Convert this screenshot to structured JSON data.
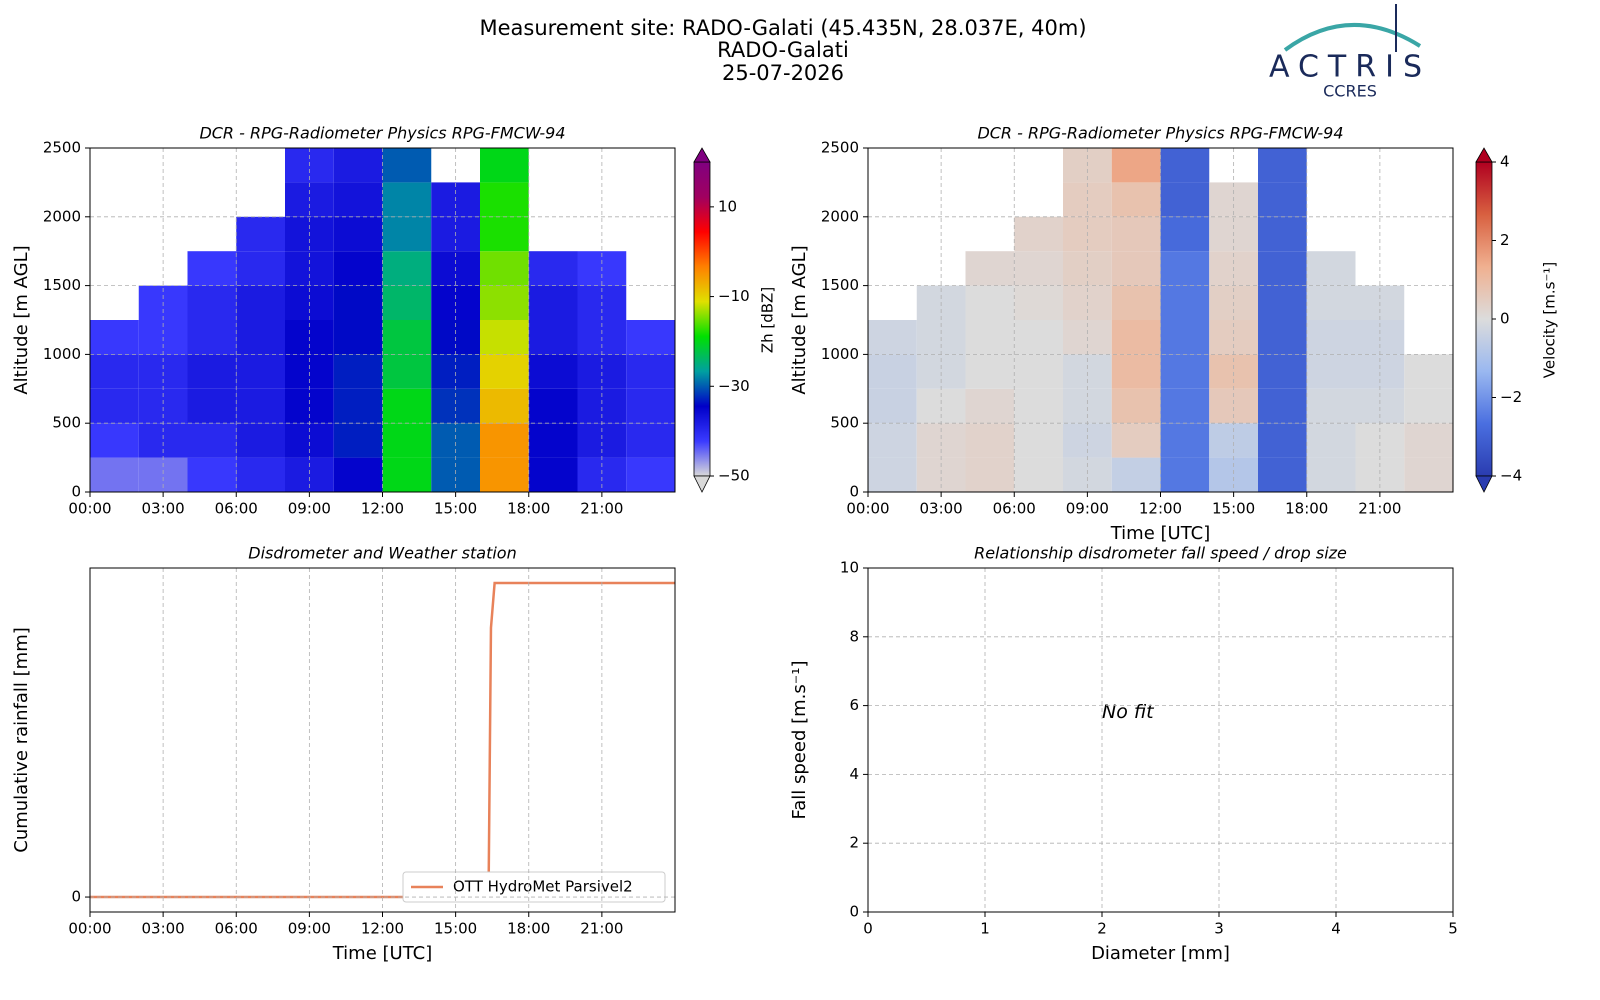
{
  "header": {
    "title_lines": [
      "Measurement site: RADO-Galati (45.435N, 28.037E, 40m)",
      "RADO-Galati",
      "25-07-2026"
    ],
    "logo_text": "ACTRIS",
    "logo_subtext": "CCRES"
  },
  "chart_data": [
    {
      "type": "heatmap",
      "title": "DCR - RPG-Radiometer Physics RPG-FMCW-94",
      "ylabel": "Altitude [m AGL]",
      "xbins": [
        0,
        2,
        4,
        6,
        8,
        10,
        12,
        14,
        16,
        18,
        20,
        22,
        24
      ],
      "ybins": [
        0,
        250,
        500,
        750,
        1000,
        1250,
        1500,
        1750,
        2000,
        2250,
        2500
      ],
      "z": [
        [
          -45,
          -45,
          -42,
          -40,
          -38,
          -35,
          -20,
          -30,
          -5,
          -35,
          -40,
          -42
        ],
        [
          -42,
          -40,
          -40,
          -38,
          -36,
          -33,
          -20,
          -30,
          -5,
          -35,
          -38,
          -40
        ],
        [
          -40,
          -40,
          -38,
          -38,
          -35,
          -33,
          -20,
          -32,
          -8,
          -35,
          -38,
          -40
        ],
        [
          -40,
          -40,
          -38,
          -38,
          -35,
          -33,
          -22,
          -33,
          -10,
          -36,
          -38,
          -40
        ],
        [
          -42,
          -42,
          -40,
          -38,
          -35,
          -34,
          -22,
          -34,
          -12,
          -38,
          -40,
          -42
        ],
        [
          null,
          -42,
          -40,
          -38,
          -36,
          -34,
          -24,
          -35,
          -14,
          -38,
          -40,
          null
        ],
        [
          null,
          null,
          -42,
          -40,
          -37,
          -35,
          -25,
          -36,
          -15,
          -40,
          -42,
          null
        ],
        [
          null,
          null,
          null,
          -40,
          -37,
          -36,
          -28,
          -38,
          -18,
          null,
          null,
          null
        ],
        [
          null,
          null,
          null,
          null,
          -38,
          -37,
          -28,
          -38,
          -18,
          null,
          null,
          null
        ],
        [
          null,
          null,
          null,
          null,
          -40,
          -38,
          -30,
          null,
          -20,
          null,
          null,
          null
        ]
      ],
      "colormap": [
        "#d9d9d9",
        "#3a3aff",
        "#0000c8",
        "#00a0a0",
        "#00e000",
        "#e0e000",
        "#ff8000",
        "#ff0000",
        "#a00060",
        "#800080"
      ],
      "zlim": [
        -50,
        20
      ],
      "zticks": [
        {
          "value": -50,
          "label": "−50"
        },
        {
          "value": -30,
          "label": "−30"
        },
        {
          "value": -10,
          "label": "−10"
        },
        10
      ],
      "zlabel": "Zh [dBZ]",
      "xlim": [
        0,
        24
      ],
      "xticks": [
        {
          "value": 0,
          "label": "00:00"
        },
        {
          "value": 3,
          "label": "03:00"
        },
        {
          "value": 6,
          "label": "06:00"
        },
        {
          "value": 9,
          "label": "09:00"
        },
        {
          "value": 12,
          "label": "12:00"
        },
        {
          "value": 15,
          "label": "15:00"
        },
        {
          "value": 18,
          "label": "18:00"
        },
        {
          "value": 21,
          "label": "21:00"
        }
      ],
      "ylim": [
        0,
        2500
      ],
      "yticks": [
        0,
        500,
        1000,
        1500,
        2000,
        2500
      ],
      "grid": true
    },
    {
      "type": "heatmap",
      "title": "DCR - RPG-Radiometer Physics RPG-FMCW-94",
      "ylabel": "Altitude [m AGL]",
      "xlabel": "Time [UTC]",
      "xbins": [
        0,
        2,
        4,
        6,
        8,
        10,
        12,
        14,
        16,
        18,
        20,
        22,
        24
      ],
      "ybins": [
        0,
        250,
        500,
        750,
        1000,
        1250,
        1500,
        1750,
        2000,
        2250,
        2500
      ],
      "z": [
        [
          -0.3,
          0.2,
          0.3,
          0,
          -0.2,
          -0.5,
          -2.5,
          -0.8,
          -3,
          -0.2,
          0,
          0.2
        ],
        [
          -0.3,
          0.2,
          0.3,
          0,
          -0.3,
          0.5,
          -2.5,
          -0.6,
          -3,
          -0.2,
          0,
          0.2
        ],
        [
          -0.4,
          0,
          0.2,
          0,
          -0.2,
          0.8,
          -2.5,
          0.6,
          -3,
          -0.2,
          -0.2,
          0
        ],
        [
          -0.4,
          -0.2,
          0,
          0,
          -0.2,
          1,
          -2.5,
          0.8,
          -3,
          -0.3,
          -0.3,
          0
        ],
        [
          -0.3,
          -0.2,
          0,
          0,
          0.2,
          1,
          -2.5,
          0.5,
          -3,
          -0.3,
          -0.3,
          null
        ],
        [
          null,
          -0.2,
          0,
          0.1,
          0.3,
          0.8,
          -2.5,
          0.4,
          -3,
          -0.2,
          -0.2,
          null
        ],
        [
          null,
          null,
          0.2,
          0.2,
          0.4,
          0.6,
          -2.5,
          0.3,
          -3,
          -0.2,
          null,
          null
        ],
        [
          null,
          null,
          null,
          0.3,
          0.5,
          0.6,
          -2.8,
          0.2,
          -3,
          null,
          null,
          null
        ],
        [
          null,
          null,
          null,
          null,
          0.5,
          0.8,
          -3,
          0.2,
          -3,
          null,
          null,
          null
        ],
        [
          null,
          null,
          null,
          null,
          0.4,
          1.5,
          -3,
          null,
          -3,
          null,
          null,
          null
        ]
      ],
      "colormap": [
        "#2a3cb0",
        "#4a6fe0",
        "#9ab8f0",
        "#dcdcdc",
        "#f0b090",
        "#d86040",
        "#b00020"
      ],
      "zlim": [
        -4,
        4
      ],
      "zticks": [
        {
          "value": -4,
          "label": "−4"
        },
        {
          "value": -2,
          "label": "−2"
        },
        0,
        2,
        4
      ],
      "zlabel": "Velocity [m.s⁻¹]",
      "xlim": [
        0,
        24
      ],
      "xticks": [
        {
          "value": 0,
          "label": "00:00"
        },
        {
          "value": 3,
          "label": "03:00"
        },
        {
          "value": 6,
          "label": "06:00"
        },
        {
          "value": 9,
          "label": "09:00"
        },
        {
          "value": 12,
          "label": "12:00"
        },
        {
          "value": 15,
          "label": "15:00"
        },
        {
          "value": 18,
          "label": "18:00"
        },
        {
          "value": 21,
          "label": "21:00"
        }
      ],
      "ylim": [
        0,
        2500
      ],
      "yticks": [
        0,
        500,
        1000,
        1500,
        2000,
        2500
      ],
      "grid": true
    },
    {
      "type": "line",
      "title": "Disdrometer and Weather station",
      "xlabel": "Time [UTC]",
      "ylabel": "Cumulative rainfall [mm]",
      "x": [
        0,
        16.35,
        16.45,
        16.6,
        24
      ],
      "series": [
        {
          "name": "OTT HydroMet Parsivel2",
          "color": "#e8825a",
          "values": [
            0,
            0,
            0.9,
            1.05,
            1.05
          ]
        }
      ],
      "legend": "lower right",
      "xlim": [
        0,
        24
      ],
      "xticks": [
        {
          "value": 0,
          "label": "00:00"
        },
        {
          "value": 3,
          "label": "03:00"
        },
        {
          "value": 6,
          "label": "06:00"
        },
        {
          "value": 9,
          "label": "09:00"
        },
        {
          "value": 12,
          "label": "12:00"
        },
        {
          "value": 15,
          "label": "15:00"
        },
        {
          "value": 18,
          "label": "18:00"
        },
        {
          "value": 21,
          "label": "21:00"
        }
      ],
      "ylim": [
        -0.05,
        1.1
      ],
      "yticks": [
        0
      ],
      "grid": true
    },
    {
      "type": "scatter",
      "title": "Relationship disdrometer fall speed / drop size",
      "xlabel": "Diameter [mm]",
      "ylabel": "Fall speed [m.s⁻¹]",
      "annotation": "No fit",
      "xlim": [
        0,
        5
      ],
      "xticks": [
        0,
        1,
        2,
        3,
        4,
        5
      ],
      "ylim": [
        0,
        10
      ],
      "yticks": [
        0,
        2,
        4,
        6,
        8,
        10
      ],
      "grid": true
    }
  ]
}
